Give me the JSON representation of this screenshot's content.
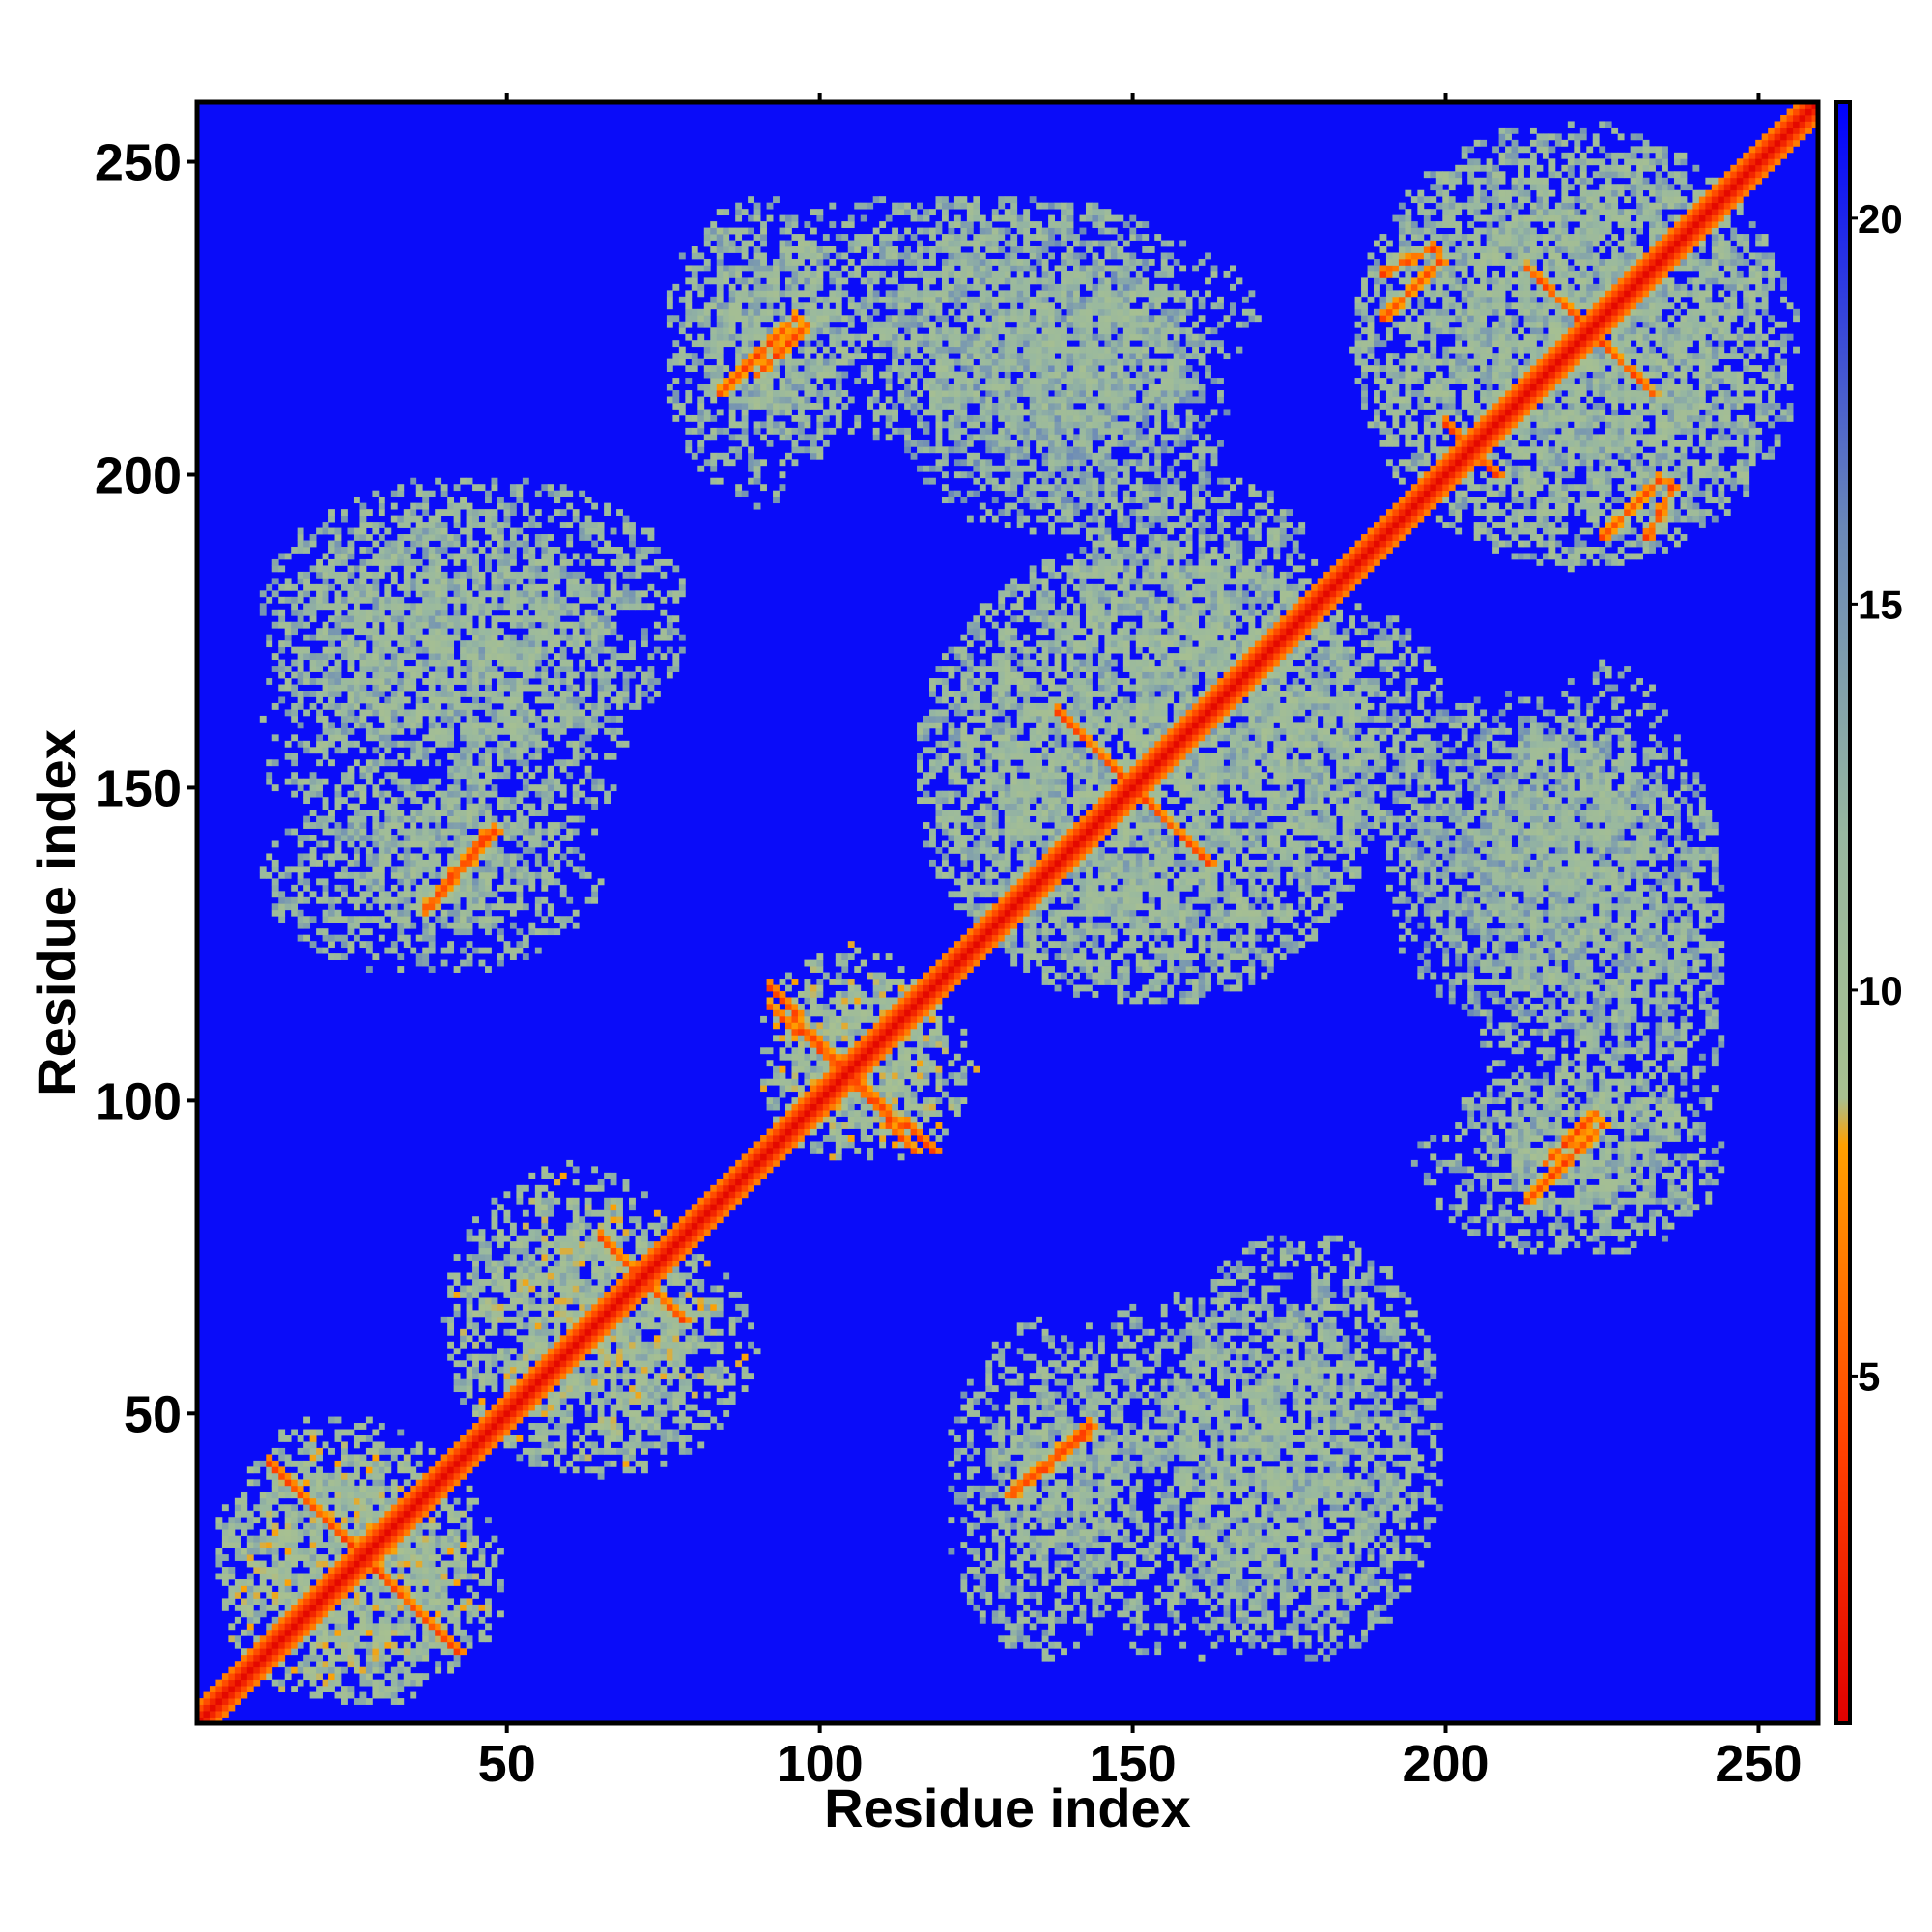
{
  "chart_data": {
    "type": "heatmap",
    "title": "",
    "xlabel": "Residue index",
    "ylabel": "Residue index",
    "xlim": [
      1,
      259
    ],
    "ylim": [
      1,
      259
    ],
    "x_ticks": [
      50,
      100,
      150,
      200,
      250
    ],
    "y_ticks": [
      50,
      100,
      150,
      200,
      250
    ],
    "x_tick_labels": [
      "50",
      "100",
      "150",
      "200",
      "250"
    ],
    "y_tick_labels": [
      "50",
      "100",
      "150",
      "200",
      "250"
    ],
    "colorbar": {
      "range": [
        0.5,
        21.5
      ],
      "ticks": [
        5,
        10,
        15,
        20
      ],
      "tick_labels": [
        "5",
        "10",
        "15",
        "20"
      ],
      "stops": [
        {
          "value": 0.5,
          "color": "#e00000"
        },
        {
          "value": 4,
          "color": "#ff4000"
        },
        {
          "value": 8,
          "color": "#ffa000"
        },
        {
          "value": 8.6,
          "color": "#a8c090"
        },
        {
          "value": 12,
          "color": "#98b8a0"
        },
        {
          "value": 16,
          "color": "#6a88b8"
        },
        {
          "value": 21.5,
          "color": "#0000ff"
        }
      ]
    },
    "background_value": 21,
    "diagonal_bands": [
      {
        "offset": 0,
        "value": 1
      },
      {
        "offset": 1,
        "value": 2.5
      },
      {
        "offset": 2,
        "value": 4.5
      },
      {
        "offset": 3,
        "value": 6.5
      }
    ],
    "contact_regions": [
      {
        "x": [
          3,
          45
        ],
        "y": [
          3,
          50
        ],
        "value": 11
      },
      {
        "x": [
          40,
          80
        ],
        "y": [
          40,
          90
        ],
        "value": 11
      },
      {
        "x": [
          90,
          120
        ],
        "y": [
          90,
          125
        ],
        "value": 11
      },
      {
        "x": [
          115,
          190
        ],
        "y": [
          115,
          190
        ],
        "value": 12
      },
      {
        "x": [
          185,
          255
        ],
        "y": [
          185,
          257
        ],
        "value": 12
      },
      {
        "x": [
          10,
          70
        ],
        "y": [
          130,
          195
        ],
        "value": 12
      },
      {
        "x": [
          75,
          105
        ],
        "y": [
          195,
          245
        ],
        "value": 12
      },
      {
        "x": [
          110,
          160
        ],
        "y": [
          190,
          245
        ],
        "value": 13
      },
      {
        "x": [
          120,
          150
        ],
        "y": [
          10,
          65
        ],
        "value": 12
      },
      {
        "x": [
          155,
          200
        ],
        "y": [
          10,
          80
        ],
        "value": 12
      },
      {
        "x": [
          205,
          245
        ],
        "y": [
          75,
          170
        ],
        "value": 12
      },
      {
        "x": [
          190,
          230
        ],
        "y": [
          125,
          165
        ],
        "value": 13
      },
      {
        "x": [
          140,
          180
        ],
        "y": [
          170,
          200
        ],
        "value": 12
      }
    ],
    "contact_lines": [
      {
        "from": [
          12,
          42
        ],
        "to": [
          42,
          12
        ],
        "value": 5
      },
      {
        "from": [
          37,
          130
        ],
        "to": [
          48,
          143
        ],
        "value": 5
      },
      {
        "from": [
          131,
          37
        ],
        "to": [
          143,
          47
        ],
        "value": 5
      },
      {
        "from": [
          65,
          78
        ],
        "to": [
          78,
          65
        ],
        "value": 5
      },
      {
        "from": [
          92,
          118
        ],
        "to": [
          115,
          92
        ],
        "value": 5
      },
      {
        "from": [
          138,
          162
        ],
        "to": [
          162,
          138
        ],
        "value": 5
      },
      {
        "from": [
          84,
          213
        ],
        "to": [
          96,
          225
        ],
        "value": 5
      },
      {
        "from": [
          190,
          225
        ],
        "to": [
          199,
          234
        ],
        "value": 5
      },
      {
        "from": [
          213,
          233
        ],
        "to": [
          233,
          213
        ],
        "value": 5
      },
      {
        "from": [
          216,
          90
        ],
        "to": [
          224,
          98
        ],
        "value": 5
      },
      {
        "from": [
          200,
          208
        ],
        "to": [
          208,
          200
        ],
        "value": 5
      },
      {
        "from": [
          232,
          190
        ],
        "to": [
          236,
          198
        ],
        "value": 5
      }
    ]
  }
}
